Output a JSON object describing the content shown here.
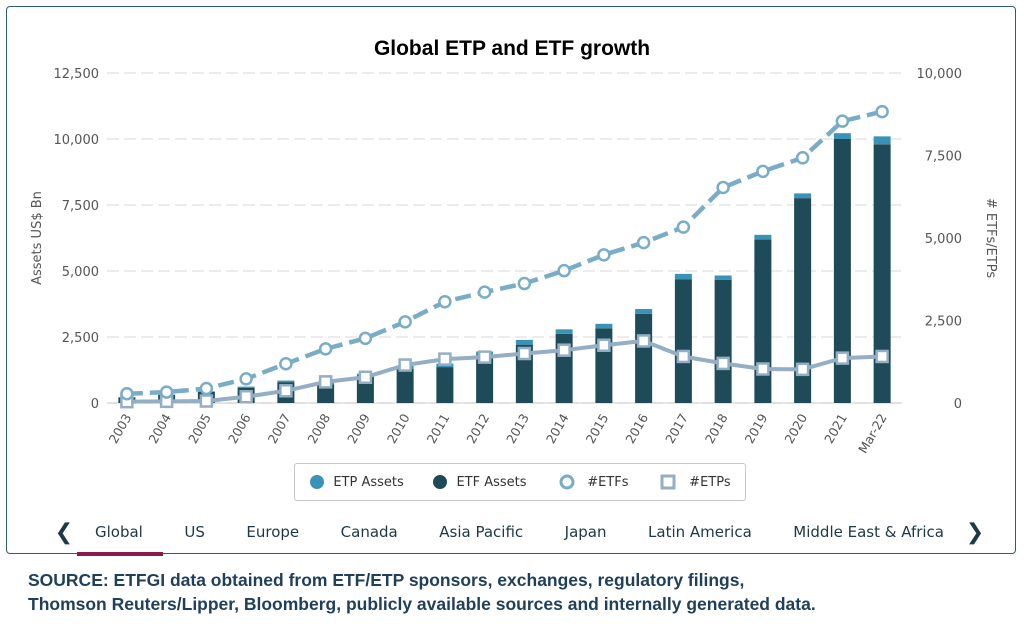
{
  "colors": {
    "etp": "#3a93b6",
    "etf": "#1f4a57",
    "etfs_line": "#79adc7",
    "etps_line": "#93aec5",
    "tab_underline": "#8b1a4a"
  },
  "chart_data": {
    "type": "bar+line",
    "title": "Global ETP and ETF growth",
    "categories": [
      "2003",
      "2004",
      "2005",
      "2006",
      "2007",
      "2008",
      "2009",
      "2010",
      "2011",
      "2012",
      "2013",
      "2014",
      "2015",
      "2016",
      "2017",
      "2018",
      "2019",
      "2020",
      "2021",
      "Mar-22"
    ],
    "ylabel_left": "Assets US$ Bn",
    "ylabel_right": "# ETFs/ETPs",
    "ylim_left": [
      0,
      12500
    ],
    "ylim_right": [
      0,
      10000
    ],
    "yticks_left": [
      "0",
      "2,500",
      "5,000",
      "7,500",
      "10,000",
      "12,500"
    ],
    "yticks_right": [
      "0",
      "2,500",
      "5,000",
      "7,500",
      "10,000"
    ],
    "grid": true,
    "legend_position": "bottom",
    "series": [
      {
        "name": "ETP Assets",
        "type": "bar",
        "axis": "left",
        "values": [
          10,
          15,
          25,
          40,
          60,
          45,
          70,
          110,
          130,
          160,
          180,
          170,
          170,
          180,
          200,
          160,
          180,
          180,
          220,
          300
        ]
      },
      {
        "name": "ETF Assets",
        "type": "bar",
        "axis": "left",
        "values": [
          210,
          310,
          420,
          580,
          790,
          710,
          1040,
          1290,
          1360,
          1790,
          2210,
          2620,
          2830,
          3380,
          4690,
          4670,
          6190,
          7760,
          10000,
          9800
        ]
      },
      {
        "name": "#ETFs",
        "type": "line",
        "axis": "right",
        "values": [
          280,
          330,
          440,
          730,
          1190,
          1640,
          1960,
          2460,
          3070,
          3360,
          3620,
          4010,
          4490,
          4860,
          5330,
          6530,
          7020,
          7430,
          8540,
          8830
        ]
      },
      {
        "name": "#ETPs",
        "type": "line",
        "axis": "right",
        "values": [
          40,
          50,
          60,
          190,
          370,
          640,
          780,
          1150,
          1330,
          1390,
          1500,
          1600,
          1750,
          1880,
          1410,
          1200,
          1030,
          1020,
          1360,
          1410
        ]
      }
    ]
  },
  "legend": [
    "ETP Assets",
    "ETF Assets",
    "#ETFs",
    "#ETPs"
  ],
  "tabs": {
    "items": [
      "Global",
      "US",
      "Europe",
      "Canada",
      "Asia Pacific",
      "Japan",
      "Latin America",
      "Middle East & Africa"
    ],
    "active_index": 0,
    "prev_icon": "chevron-left-icon",
    "next_icon": "chevron-right-icon",
    "prev_glyph": "❮",
    "next_glyph": "❯"
  },
  "source": {
    "line1": "SOURCE: ETFGI data obtained from ETF/ETP sponsors, exchanges, regulatory filings,",
    "line2": "Thomson Reuters/Lipper, Bloomberg, publicly available sources and internally generated data."
  }
}
